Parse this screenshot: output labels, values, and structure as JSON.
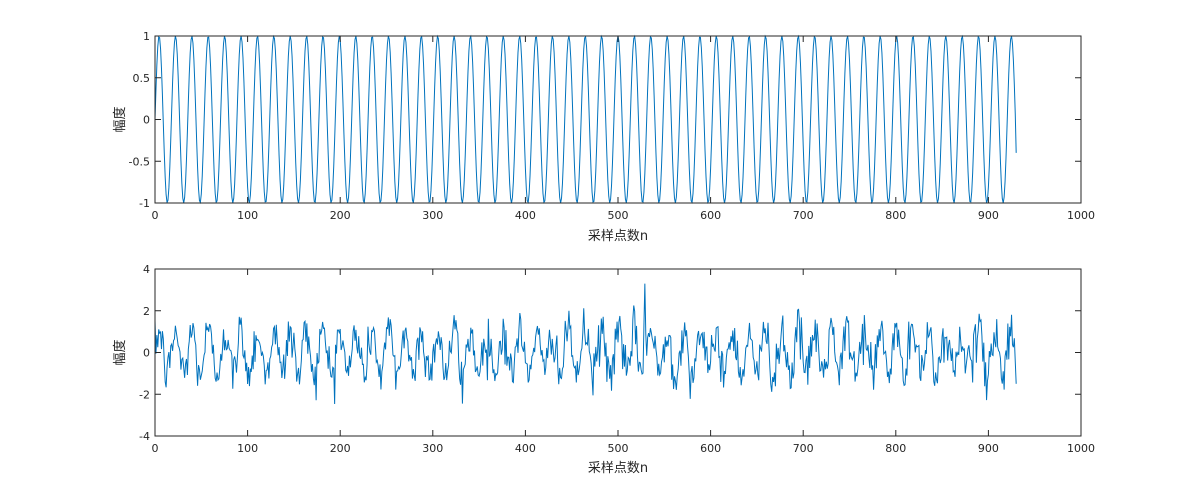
{
  "chart_data": [
    {
      "type": "line",
      "title": "",
      "xlabel": "采样点数n",
      "ylabel": "幅度",
      "xlim": [
        0,
        1000
      ],
      "ylim": [
        -1,
        1
      ],
      "xticks": [
        0,
        100,
        200,
        300,
        400,
        500,
        600,
        700,
        800,
        900,
        1000
      ],
      "yticks": [
        -1,
        -0.5,
        0,
        0.5,
        1
      ],
      "grid": false,
      "series": [
        {
          "color": "#0072BD",
          "generator": "sin",
          "amplitude": 1,
          "cycles_per_sample": 0.0565,
          "n_start": 0,
          "n_end": 930,
          "end_value": -0.4
        }
      ]
    },
    {
      "type": "line",
      "title": "",
      "xlabel": "采样点数n",
      "ylabel": "幅度",
      "xlim": [
        0,
        1000
      ],
      "ylim": [
        -4,
        4
      ],
      "xticks": [
        0,
        100,
        200,
        300,
        400,
        500,
        600,
        700,
        800,
        900,
        1000
      ],
      "yticks": [
        -4,
        -2,
        0,
        2,
        4
      ],
      "grid": false,
      "series": [
        {
          "color": "#0072BD",
          "generator": "sine_plus_noise",
          "n_start": 0,
          "n_end": 930,
          "approx_range": [
            -2.5,
            3.3
          ],
          "peak": {
            "x": 529,
            "y": 3.3
          },
          "min": {
            "x": 332,
            "y": -2.45
          },
          "end_value": -1.5
        }
      ]
    }
  ]
}
